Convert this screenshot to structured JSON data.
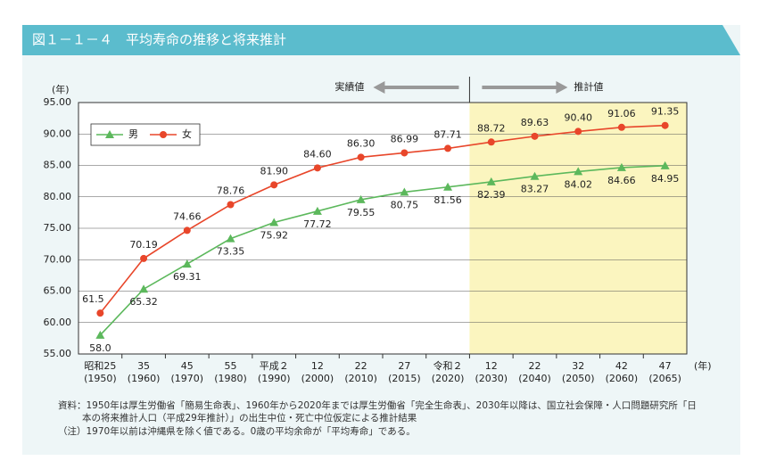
{
  "header": {
    "title": "図１－１－４　平均寿命の推移と将来推計"
  },
  "chart_data": {
    "type": "line",
    "y_unit": "(年)",
    "x_unit": "(年)",
    "actual_label": "実績値",
    "projection_label": "推計値",
    "projection_start": 9,
    "categories": [
      "昭和25",
      "35",
      "45",
      "55",
      "平成２",
      "12",
      "22",
      "27",
      "令和２",
      "12",
      "22",
      "32",
      "42",
      "47"
    ],
    "category_years": [
      "(1950)",
      "(1960)",
      "(1970)",
      "(1980)",
      "(1990)",
      "(2000)",
      "(2010)",
      "(2015)",
      "(2020)",
      "(2030)",
      "(2040)",
      "(2050)",
      "(2060)",
      "(2065)"
    ],
    "series": [
      {
        "name": "男",
        "color": "#5cb85c",
        "marker": "triangle",
        "label_side": "below",
        "values": [
          58.0,
          65.32,
          69.31,
          73.35,
          75.92,
          77.72,
          79.55,
          80.75,
          81.56,
          82.39,
          83.27,
          84.02,
          84.66,
          84.95
        ],
        "value_labels": [
          "58.0",
          "65.32",
          "69.31",
          "73.35",
          "75.92",
          "77.72",
          "79.55",
          "80.75",
          "81.56",
          "82.39",
          "83.27",
          "84.02",
          "84.66",
          "84.95"
        ]
      },
      {
        "name": "女",
        "color": "#e8462a",
        "marker": "circle",
        "label_side": "above",
        "values": [
          61.5,
          70.19,
          74.66,
          78.76,
          81.9,
          84.6,
          86.3,
          86.99,
          87.71,
          88.72,
          89.63,
          90.4,
          91.06,
          91.35
        ],
        "value_labels": [
          "61.5",
          "70.19",
          "74.66",
          "78.76",
          "81.90",
          "84.60",
          "86.30",
          "86.99",
          "87.71",
          "88.72",
          "89.63",
          "90.40",
          "91.06",
          "91.35"
        ]
      }
    ],
    "ylim": [
      55,
      95
    ],
    "yticks": [
      {
        "value": 55,
        "label": "55.00"
      },
      {
        "value": 60,
        "label": "60.00"
      },
      {
        "value": 65,
        "label": "65.00"
      },
      {
        "value": 70,
        "label": "70.00"
      },
      {
        "value": 75,
        "label": "75.00"
      },
      {
        "value": 80,
        "label": "80.00"
      },
      {
        "value": 85,
        "label": "85.00"
      },
      {
        "value": 90,
        "label": "90.00"
      },
      {
        "value": 95,
        "label": "95.00"
      }
    ],
    "grid": true,
    "legend": "upper left"
  },
  "notes": [
    "資料：1950年は厚生労働省「簡易生命表」、1960年から2020年までは厚生労働省「完全生命表」、2030年以降は、国立社会保障・人口問題研究所「日",
    "本の将来推計人口（平成29年推計）」の出生中位・死亡中位仮定による推計結果",
    "（注）1970年以前は沖縄県を除く値である。0歳の平均余命が「平均寿命」である。"
  ]
}
